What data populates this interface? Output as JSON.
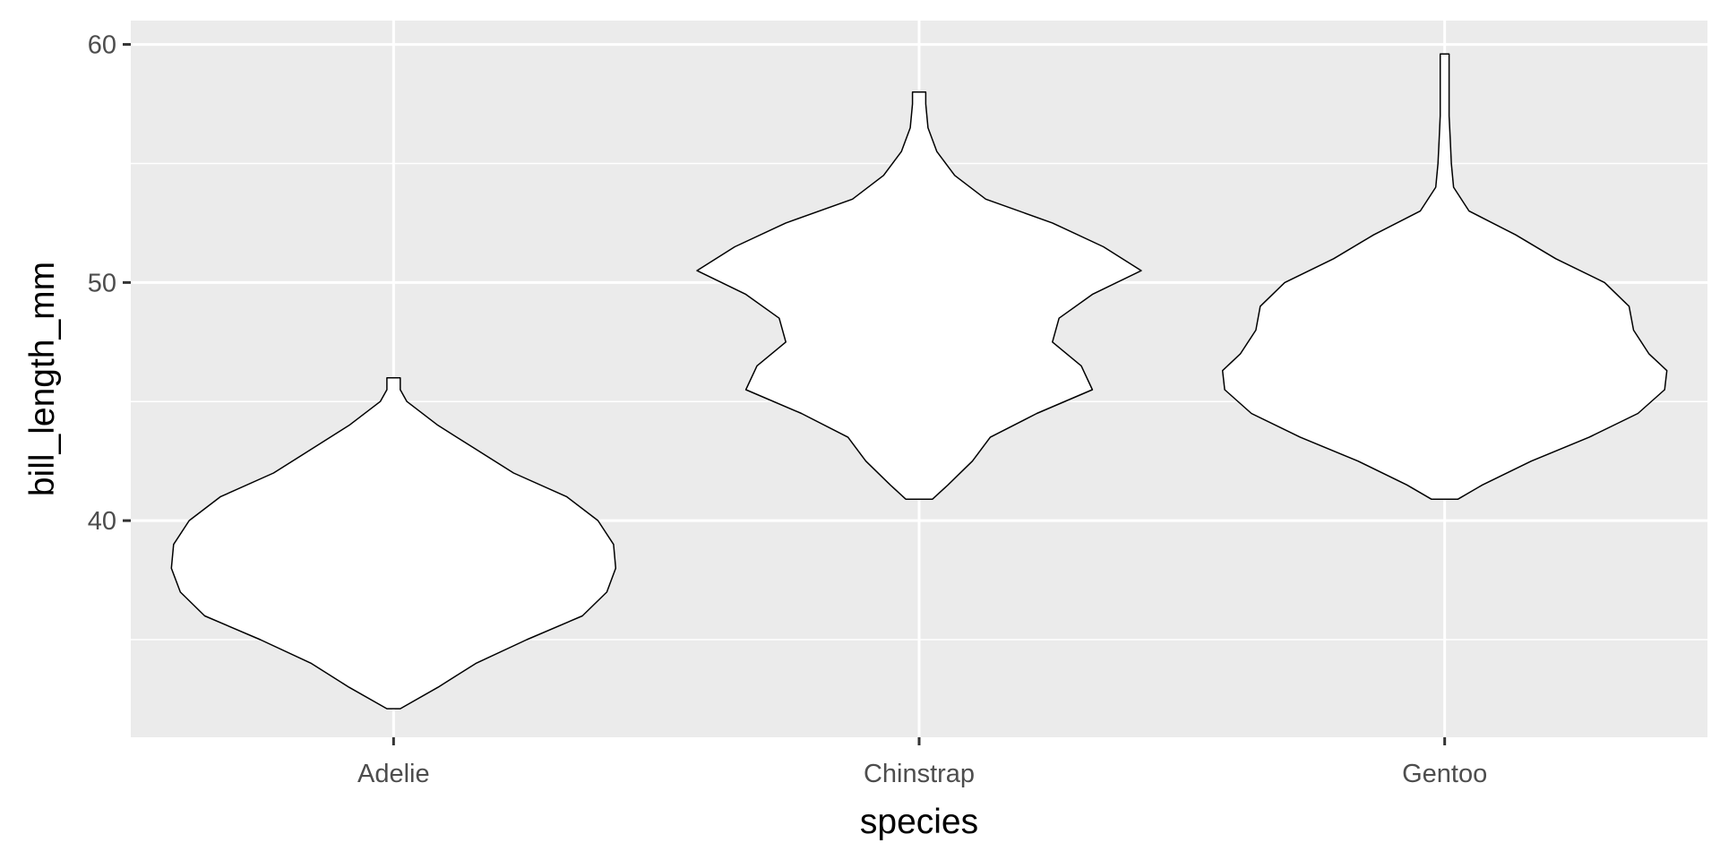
{
  "chart_data": {
    "type": "violin",
    "xlabel": "species",
    "ylabel": "bill_length_mm",
    "ylim": [
      30.9,
      61.0
    ],
    "y_ticks": [
      40,
      50,
      60
    ],
    "y_minor_ticks": [
      35,
      45,
      55
    ],
    "grid": true,
    "panel_color": "#ebebeb",
    "grid_color": "#ffffff",
    "violin_fill": "#ffffff",
    "violin_outline": "#000000",
    "categories": [
      "Adelie",
      "Chinstrap",
      "Gentoo"
    ],
    "violins": [
      {
        "category": "Adelie",
        "y_min": 32.1,
        "y_max": 46.0,
        "profile": [
          [
            32.1,
            0.03
          ],
          [
            33.0,
            0.2
          ],
          [
            34.0,
            0.37
          ],
          [
            35.0,
            0.6
          ],
          [
            36.0,
            0.85
          ],
          [
            37.0,
            0.96
          ],
          [
            38.0,
            1.0
          ],
          [
            39.0,
            0.99
          ],
          [
            40.0,
            0.92
          ],
          [
            41.0,
            0.78
          ],
          [
            42.0,
            0.54
          ],
          [
            43.0,
            0.37
          ],
          [
            44.0,
            0.2
          ],
          [
            45.0,
            0.06
          ],
          [
            45.5,
            0.03
          ],
          [
            46.0,
            0.03
          ]
        ]
      },
      {
        "category": "Chinstrap",
        "y_min": 40.9,
        "y_max": 58.0,
        "profile": [
          [
            40.9,
            0.06
          ],
          [
            41.5,
            0.13
          ],
          [
            42.5,
            0.24
          ],
          [
            43.5,
            0.32
          ],
          [
            44.5,
            0.53
          ],
          [
            45.5,
            0.78
          ],
          [
            46.5,
            0.73
          ],
          [
            47.5,
            0.6
          ],
          [
            48.5,
            0.63
          ],
          [
            49.5,
            0.78
          ],
          [
            50.5,
            1.0
          ],
          [
            51.5,
            0.83
          ],
          [
            52.5,
            0.6
          ],
          [
            53.5,
            0.3
          ],
          [
            54.5,
            0.16
          ],
          [
            55.5,
            0.08
          ],
          [
            56.5,
            0.04
          ],
          [
            57.5,
            0.03
          ],
          [
            58.0,
            0.03
          ]
        ]
      },
      {
        "category": "Gentoo",
        "y_min": 40.9,
        "y_max": 59.6,
        "profile": [
          [
            40.9,
            0.06
          ],
          [
            41.5,
            0.17
          ],
          [
            42.5,
            0.39
          ],
          [
            43.5,
            0.65
          ],
          [
            44.5,
            0.87
          ],
          [
            45.5,
            0.99
          ],
          [
            46.3,
            1.0
          ],
          [
            47.0,
            0.92
          ],
          [
            48.0,
            0.85
          ],
          [
            49.0,
            0.83
          ],
          [
            50.0,
            0.72
          ],
          [
            51.0,
            0.5
          ],
          [
            52.0,
            0.32
          ],
          [
            53.0,
            0.11
          ],
          [
            54.0,
            0.04
          ],
          [
            55.0,
            0.03
          ],
          [
            56.0,
            0.025
          ],
          [
            57.0,
            0.02
          ],
          [
            58.0,
            0.02
          ],
          [
            59.0,
            0.02
          ],
          [
            59.6,
            0.02
          ]
        ]
      }
    ]
  }
}
